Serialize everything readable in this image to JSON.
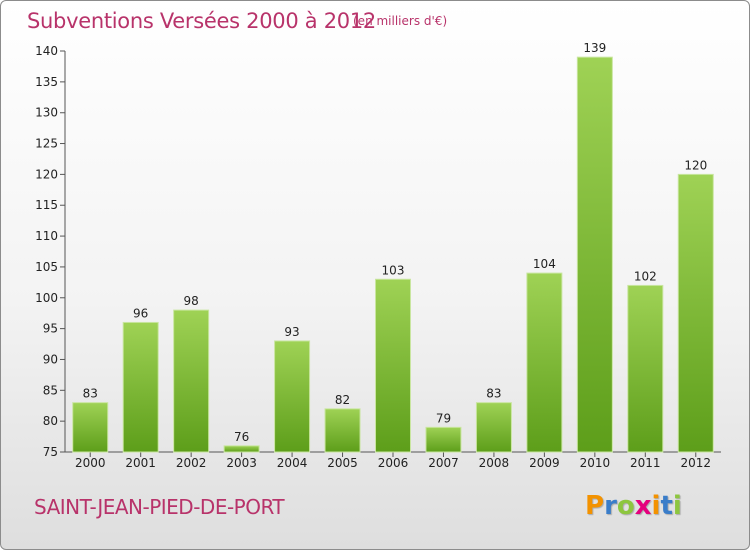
{
  "header": {
    "title": "Subventions Versées 2000 à 2012",
    "unit": "(en milliers d'€)"
  },
  "footer": {
    "commune": "SAINT-JEAN-PIED-DE-PORT",
    "logo_letters": [
      "P",
      "r",
      "o",
      "x",
      "i",
      "t",
      "i"
    ],
    "logo_colors": [
      "#f39200",
      "#3a7dc9",
      "#8dc63f",
      "#e5007d",
      "#f39200",
      "#3a7dc9",
      "#8dc63f"
    ]
  },
  "chart_data": {
    "type": "bar",
    "categories": [
      "2000",
      "2001",
      "2002",
      "2003",
      "2004",
      "2005",
      "2006",
      "2007",
      "2008",
      "2009",
      "2010",
      "2011",
      "2012"
    ],
    "values": [
      83,
      96,
      98,
      76,
      93,
      82,
      103,
      79,
      83,
      104,
      139,
      102,
      120
    ],
    "title": "Subventions Versées 2000 à 2012",
    "xlabel": "",
    "ylabel": "",
    "ylim": [
      75,
      140
    ],
    "yticks": [
      75,
      80,
      85,
      90,
      95,
      100,
      105,
      110,
      115,
      120,
      125,
      130,
      135,
      140
    ],
    "grid": false,
    "bar_color_top": "#9fd255",
    "bar_color_bottom": "#5d9e1a"
  }
}
